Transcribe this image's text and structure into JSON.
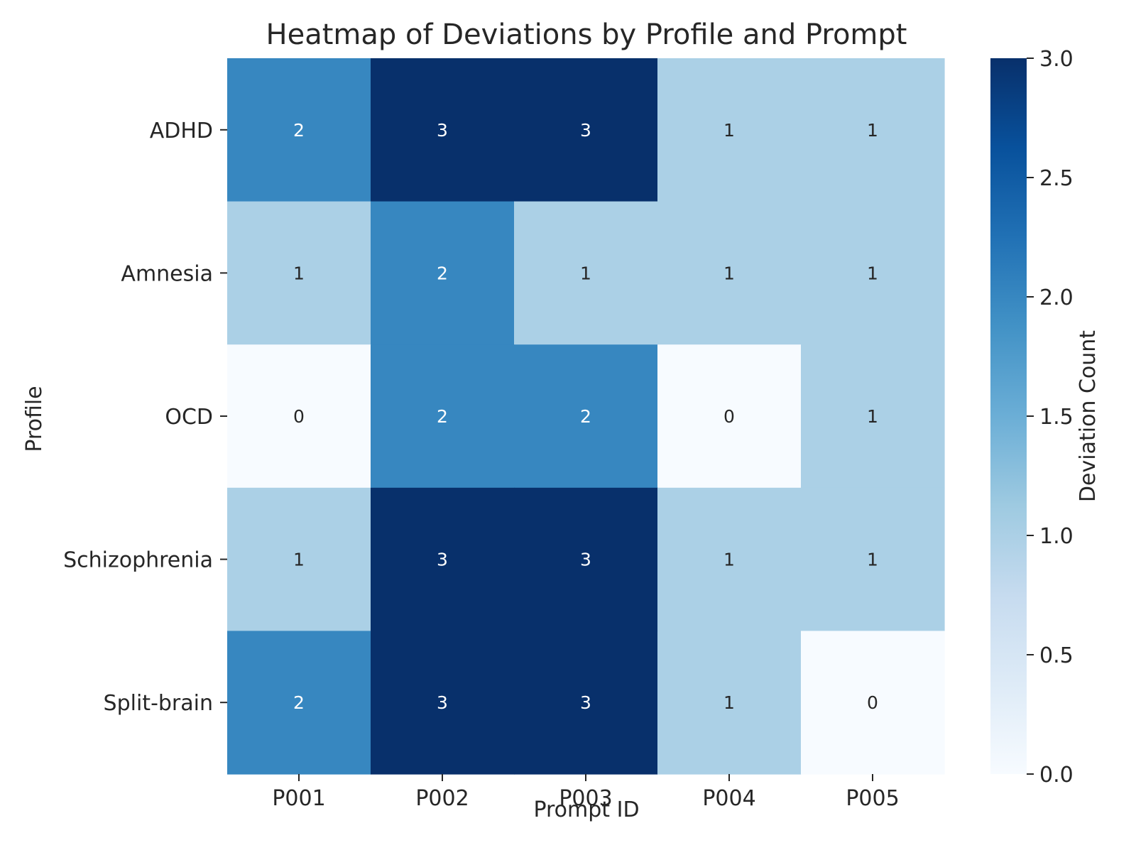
{
  "chart_data": {
    "type": "heatmap",
    "title": "Heatmap of Deviations by Profile and Prompt",
    "xlabel": "Prompt ID",
    "ylabel": "Profile",
    "x_categories": [
      "P001",
      "P002",
      "P003",
      "P004",
      "P005"
    ],
    "y_categories": [
      "ADHD",
      "Amnesia",
      "OCD",
      "Schizophrenia",
      "Split-brain"
    ],
    "values": [
      [
        2,
        3,
        3,
        1,
        1
      ],
      [
        1,
        2,
        1,
        1,
        1
      ],
      [
        0,
        2,
        2,
        0,
        1
      ],
      [
        1,
        3,
        3,
        1,
        1
      ],
      [
        2,
        3,
        3,
        1,
        0
      ]
    ],
    "annotated": true,
    "colormap": "Blues",
    "colorbar": {
      "label": "Deviation Count",
      "range": [
        0,
        3
      ],
      "ticks": [
        "0.0",
        "0.5",
        "1.0",
        "1.5",
        "2.0",
        "2.5",
        "3.0"
      ],
      "colors": [
        "#f7fbff",
        "#deebf7",
        "#c6dbef",
        "#9ecae1",
        "#6baed6",
        "#4292c6",
        "#2171b5",
        "#08519c",
        "#08306b"
      ]
    },
    "cell_colors": {
      "0": "#f7fbff",
      "1": "#abd0e6",
      "2": "#3787c0",
      "3": "#08306b"
    },
    "annotation_colors": {
      "light": "#262626",
      "dark": "#ffffff"
    }
  }
}
